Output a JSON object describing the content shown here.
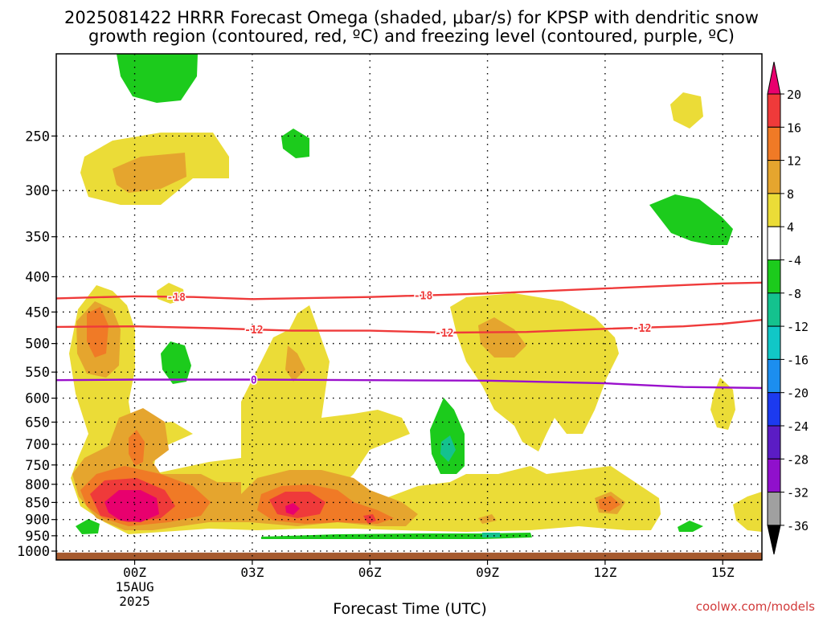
{
  "chart_data": {
    "type": "heatmap",
    "title_line1": "2025081422 HRRR Forecast Omega (shaded, μbar/s) for KPSP with dendritic snow",
    "title_line2": "growth region (contoured, red, ºC) and freezing level (contoured, purple, ºC)",
    "xlabel": "Forecast Time (UTC)",
    "ylabel": "",
    "watermark": "coolwx.com/models",
    "x_ticks": [
      "00Z",
      "03Z",
      "06Z",
      "09Z",
      "12Z",
      "15Z"
    ],
    "x_date_line1": "15AUG",
    "x_date_line2": "2025",
    "x_range_hours": [
      -2,
      16
    ],
    "y_range_hpa": [
      1030,
      190
    ],
    "y_ticks": [
      250,
      300,
      350,
      400,
      450,
      500,
      550,
      600,
      650,
      700,
      750,
      800,
      850,
      900,
      950,
      1000
    ],
    "grid": true,
    "colorbar": {
      "labels": [
        "20",
        "16",
        "12",
        "8",
        "4",
        "-4",
        "-8",
        "-12",
        "-16",
        "-20",
        "-24",
        "-28",
        "-32",
        "-36"
      ],
      "colors": [
        "#e8006e",
        "#ef3a3a",
        "#f07a26",
        "#e5a52e",
        "#ebdc37",
        "#ffffff",
        "#1ccb1c",
        "#14c28e",
        "#11c7c7",
        "#1c8eef",
        "#1c3aef",
        "#5b1cc4",
        "#9010cc",
        "#a0a0a0",
        "#000000"
      ]
    },
    "contours": [
      {
        "label": "-18",
        "color": "#ef3a3a",
        "points": [
          [
            -2,
            430
          ],
          [
            0,
            427
          ],
          [
            1.5,
            428
          ],
          [
            3,
            431
          ],
          [
            6,
            428
          ],
          [
            9,
            423
          ],
          [
            12,
            416
          ],
          [
            15,
            409
          ],
          [
            16,
            408
          ]
        ]
      },
      {
        "label": "-12",
        "color": "#ef3a3a",
        "points": [
          [
            -2,
            473
          ],
          [
            0,
            472
          ],
          [
            2,
            475
          ],
          [
            4,
            479
          ],
          [
            6,
            479
          ],
          [
            8,
            482
          ],
          [
            10,
            481
          ],
          [
            12,
            476
          ],
          [
            14,
            472
          ],
          [
            15,
            468
          ],
          [
            16,
            462
          ]
        ]
      },
      {
        "label": "0",
        "color": "#9a10cc",
        "points": [
          [
            -2,
            565
          ],
          [
            0,
            564
          ],
          [
            3,
            564
          ],
          [
            6,
            565
          ],
          [
            9,
            566
          ],
          [
            12,
            571
          ],
          [
            14,
            578
          ],
          [
            16,
            580
          ]
        ]
      }
    ],
    "terrain_pressure_hpa": 1005,
    "terrain_color": "#a65a2e"
  }
}
